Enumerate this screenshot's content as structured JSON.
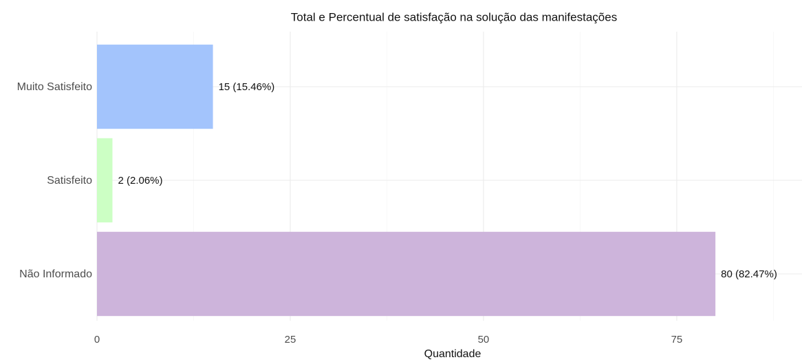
{
  "chart_data": {
    "type": "hbar",
    "title": "Total e Percentual de satisfação na solução das manifestações",
    "categories": [
      "Muito Satisfeito",
      "Satisfeito",
      "Não Informado"
    ],
    "values": [
      15,
      2,
      80
    ],
    "value_labels": [
      "15 (15.46%)",
      "2 (2.06%)",
      "80 (82.47%)"
    ],
    "colors": [
      "#a3c4fc",
      "#ccffc4",
      "#cdb4db"
    ],
    "x_label": "Quantidade",
    "xlim": [
      0,
      91.2
    ],
    "xticks": [
      0,
      25,
      50,
      75
    ],
    "xminor": [
      12.5,
      37.5,
      62.5,
      87.5
    ],
    "grid": true
  }
}
